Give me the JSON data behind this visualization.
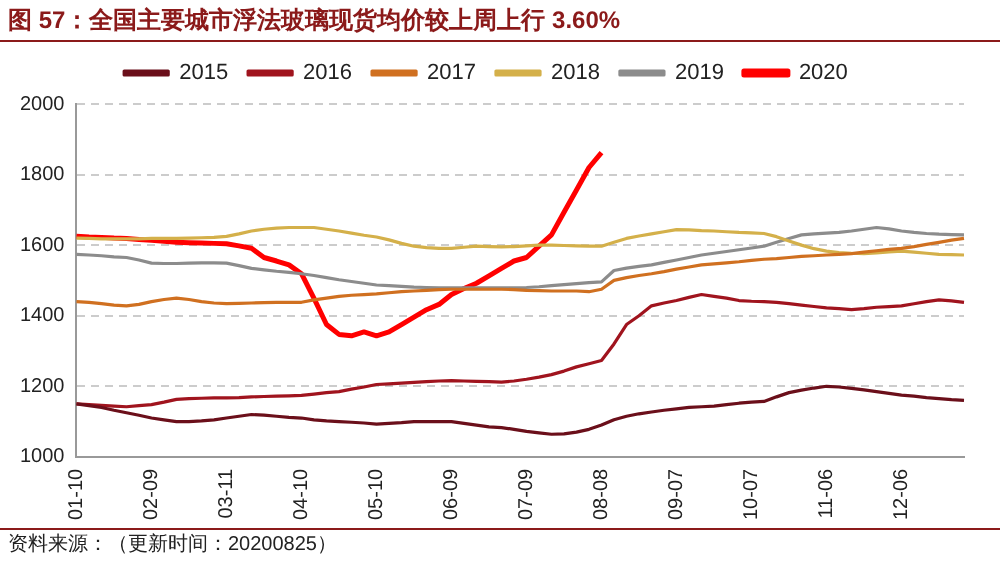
{
  "chart_data": {
    "type": "line",
    "title": "图 57：全国主要城市浮法玻璃现货均价较上周上行 3.60%",
    "annotations": [
      "资料来源：（更新时间：20200825）"
    ],
    "categories": [
      "01-10",
      null,
      null,
      null,
      null,
      null,
      "02-09",
      null,
      null,
      null,
      null,
      null,
      "03-11",
      null,
      null,
      null,
      null,
      null,
      "04-10",
      null,
      null,
      null,
      null,
      null,
      "05-10",
      null,
      null,
      null,
      null,
      null,
      "06-09",
      null,
      null,
      null,
      null,
      null,
      "07-09",
      null,
      null,
      null,
      null,
      null,
      "08-08",
      null,
      null,
      null,
      null,
      null,
      "09-07",
      null,
      null,
      null,
      null,
      null,
      "10-07",
      null,
      null,
      null,
      null,
      null,
      "11-06",
      null,
      null,
      null,
      null,
      null,
      "12-06",
      null,
      null,
      null,
      null,
      null
    ],
    "series": [
      {
        "name": "2015",
        "color": "#6b0f1a",
        "values": [
          1150,
          1145,
          1140,
          1132,
          1125,
          1118,
          1110,
          1105,
          1100,
          1100,
          1102,
          1105,
          1110,
          1115,
          1120,
          1118,
          1115,
          1112,
          1110,
          1105,
          1102,
          1100,
          1098,
          1096,
          1093,
          1095,
          1097,
          1100,
          1100,
          1100,
          1100,
          1095,
          1090,
          1085,
          1083,
          1078,
          1072,
          1068,
          1064,
          1065,
          1070,
          1078,
          1090,
          1105,
          1115,
          1122,
          1127,
          1132,
          1136,
          1140,
          1142,
          1144,
          1148,
          1152,
          1155,
          1157,
          1170,
          1182,
          1189,
          1195,
          1200,
          1198,
          1194,
          1190,
          1185,
          1180,
          1175,
          1172,
          1168,
          1165,
          1162,
          1160
        ]
      },
      {
        "name": "2016",
        "color": "#a0141e",
        "values": [
          1150,
          1148,
          1146,
          1144,
          1142,
          1145,
          1148,
          1155,
          1163,
          1165,
          1166,
          1167,
          1167,
          1168,
          1170,
          1171,
          1172,
          1173,
          1174,
          1178,
          1182,
          1185,
          1192,
          1198,
          1205,
          1207,
          1209,
          1211,
          1213,
          1215,
          1216,
          1215,
          1214,
          1213,
          1212,
          1215,
          1220,
          1226,
          1233,
          1243,
          1255,
          1264,
          1273,
          1320,
          1375,
          1400,
          1428,
          1436,
          1443,
          1452,
          1460,
          1455,
          1450,
          1443,
          1441,
          1440,
          1438,
          1434,
          1430,
          1426,
          1422,
          1420,
          1417,
          1420,
          1424,
          1426,
          1428,
          1434,
          1440,
          1445,
          1442,
          1438
        ]
      },
      {
        "name": "2017",
        "color": "#d07020",
        "values": [
          1440,
          1438,
          1434,
          1430,
          1428,
          1432,
          1440,
          1446,
          1450,
          1446,
          1440,
          1436,
          1434,
          1435,
          1436,
          1437,
          1438,
          1438,
          1438,
          1445,
          1450,
          1455,
          1458,
          1460,
          1462,
          1465,
          1468,
          1470,
          1472,
          1474,
          1475,
          1475,
          1475,
          1475,
          1475,
          1474,
          1472,
          1471,
          1470,
          1470,
          1470,
          1468,
          1475,
          1500,
          1508,
          1514,
          1519,
          1525,
          1532,
          1538,
          1544,
          1547,
          1550,
          1553,
          1557,
          1560,
          1562,
          1565,
          1568,
          1570,
          1572,
          1574,
          1576,
          1580,
          1584,
          1588,
          1591,
          1596,
          1602,
          1608,
          1614,
          1619
        ]
      },
      {
        "name": "2018",
        "color": "#d4b04a",
        "values": [
          1620,
          1619,
          1618,
          1618,
          1618,
          1618,
          1619,
          1619,
          1619,
          1620,
          1621,
          1622,
          1625,
          1632,
          1640,
          1645,
          1648,
          1650,
          1650,
          1650,
          1645,
          1640,
          1634,
          1628,
          1623,
          1615,
          1605,
          1597,
          1593,
          1591,
          1591,
          1594,
          1597,
          1596,
          1595,
          1596,
          1598,
          1600,
          1600,
          1599,
          1598,
          1597,
          1597,
          1608,
          1619,
          1626,
          1632,
          1638,
          1644,
          1643,
          1641,
          1640,
          1638,
          1636,
          1635,
          1633,
          1624,
          1612,
          1600,
          1590,
          1583,
          1579,
          1577,
          1576,
          1578,
          1581,
          1583,
          1580,
          1577,
          1574,
          1573,
          1572
        ]
      },
      {
        "name": "2019",
        "color": "#8c8c8c",
        "values": [
          1574,
          1572,
          1570,
          1567,
          1565,
          1558,
          1549,
          1548,
          1548,
          1549,
          1550,
          1550,
          1549,
          1542,
          1534,
          1530,
          1526,
          1523,
          1519,
          1514,
          1508,
          1502,
          1497,
          1492,
          1487,
          1485,
          1483,
          1481,
          1480,
          1479,
          1479,
          1479,
          1479,
          1479,
          1479,
          1479,
          1480,
          1482,
          1485,
          1488,
          1491,
          1494,
          1496,
          1528,
          1535,
          1540,
          1544,
          1551,
          1558,
          1565,
          1572,
          1577,
          1582,
          1587,
          1592,
          1597,
          1608,
          1619,
          1629,
          1632,
          1634,
          1636,
          1640,
          1645,
          1650,
          1646,
          1640,
          1636,
          1633,
          1631,
          1630,
          1629
        ]
      },
      {
        "name": "2020",
        "color": "#ff0000",
        "values": [
          1625,
          1623,
          1622,
          1620,
          1619,
          1616,
          1614,
          1611,
          1608,
          1607,
          1606,
          1605,
          1604,
          1598,
          1591,
          1565,
          1555,
          1544,
          1519,
          1449,
          1375,
          1347,
          1343,
          1354,
          1343,
          1354,
          1375,
          1396,
          1417,
          1432,
          1460,
          1477,
          1492,
          1513,
          1534,
          1555,
          1565,
          1597,
          1629,
          1693,
          1756,
          1820,
          1862,
          null,
          null,
          null,
          null,
          null,
          null,
          null,
          null,
          null,
          null,
          null,
          null,
          null,
          null,
          null,
          null,
          null,
          null,
          null,
          null,
          null,
          null,
          null,
          null,
          null,
          null,
          null,
          null,
          null
        ]
      }
    ],
    "ylim": [
      1000,
      2000
    ],
    "yticks": [
      1000,
      1200,
      1400,
      1600,
      1800,
      2000
    ],
    "grid": "y",
    "legend": "top",
    "marker": "none",
    "line_style": "solid"
  }
}
